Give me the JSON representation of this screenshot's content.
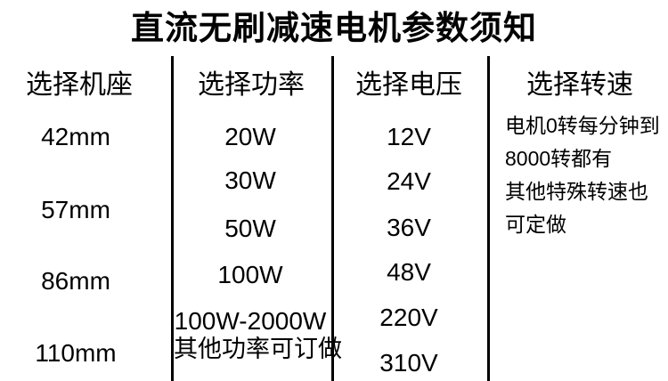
{
  "title": "直流无刷减速电机参数须知",
  "columns": [
    {
      "header": "选择机座",
      "items": [
        "42mm",
        "57mm",
        "86mm",
        "110mm"
      ]
    },
    {
      "header": "选择功率",
      "items": [
        "20W",
        "30W",
        "50W",
        "100W",
        "100W-2000W",
        "其他功率可订做"
      ]
    },
    {
      "header": "选择电压",
      "items": [
        "12V",
        "24V",
        "36V",
        "48V",
        "220V",
        "310V"
      ]
    },
    {
      "header": "选择转速",
      "items": [
        "电机0转每分钟到",
        "8000转都有",
        "其他特殊转速也",
        "可定做"
      ]
    }
  ],
  "colors": {
    "background": "#ffffff",
    "text": "#000000",
    "divider": "#000000"
  }
}
